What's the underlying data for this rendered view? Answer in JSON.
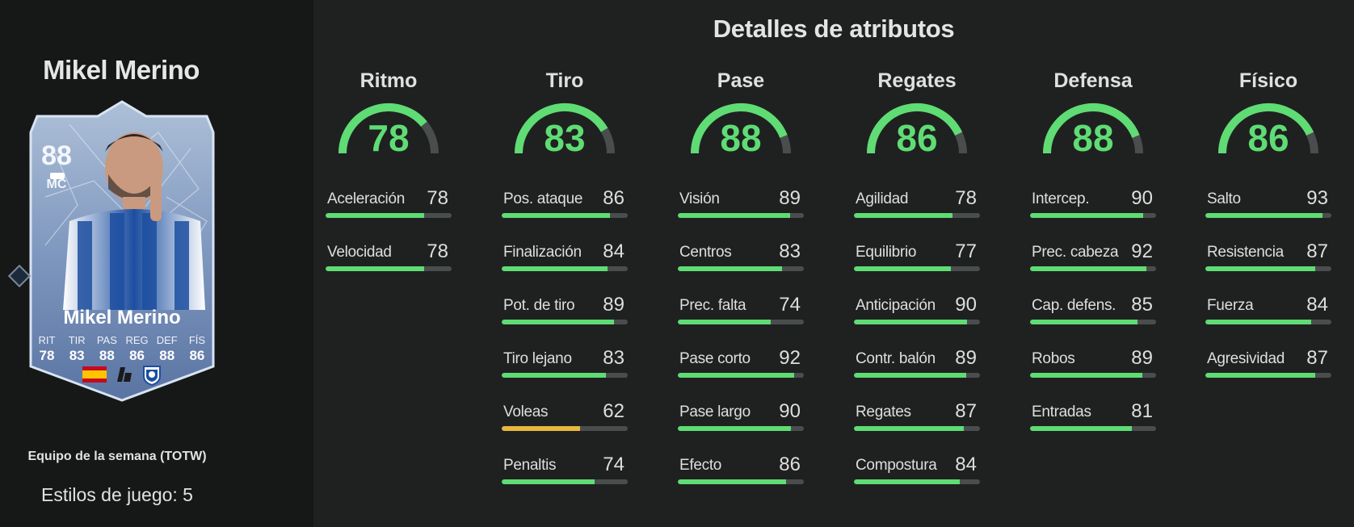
{
  "player": {
    "name": "Mikel Merino",
    "rating": "88",
    "position": "MC",
    "card_name": "Mikel Merino",
    "card_stats": [
      {
        "label": "RIT",
        "value": "78"
      },
      {
        "label": "TIR",
        "value": "83"
      },
      {
        "label": "PAS",
        "value": "88"
      },
      {
        "label": "REG",
        "value": "86"
      },
      {
        "label": "DEF",
        "value": "88"
      },
      {
        "label": "FÍS",
        "value": "86"
      }
    ],
    "card_type": "Equipo de la semana (TOTW)",
    "playstyles": "Estilos de juego: 5"
  },
  "details_title": "Detalles de atributos",
  "colors": {
    "green": "#5fdc74",
    "yellow": "#e8b73e",
    "track": "#4a4d4d"
  },
  "categories": [
    {
      "name": "Ritmo",
      "value": "78",
      "attrs": [
        {
          "name": "Aceleración",
          "value": "78"
        },
        {
          "name": "Velocidad",
          "value": "78"
        }
      ]
    },
    {
      "name": "Tiro",
      "value": "83",
      "attrs": [
        {
          "name": "Pos. ataque",
          "value": "86"
        },
        {
          "name": "Finalización",
          "value": "84"
        },
        {
          "name": "Pot. de tiro",
          "value": "89"
        },
        {
          "name": "Tiro lejano",
          "value": "83"
        },
        {
          "name": "Voleas",
          "value": "62"
        },
        {
          "name": "Penaltis",
          "value": "74"
        }
      ]
    },
    {
      "name": "Pase",
      "value": "88",
      "attrs": [
        {
          "name": "Visión",
          "value": "89"
        },
        {
          "name": "Centros",
          "value": "83"
        },
        {
          "name": "Prec. falta",
          "value": "74"
        },
        {
          "name": "Pase corto",
          "value": "92"
        },
        {
          "name": "Pase largo",
          "value": "90"
        },
        {
          "name": "Efecto",
          "value": "86"
        }
      ]
    },
    {
      "name": "Regates",
      "value": "86",
      "attrs": [
        {
          "name": "Agilidad",
          "value": "78"
        },
        {
          "name": "Equilibrio",
          "value": "77"
        },
        {
          "name": "Anticipación",
          "value": "90"
        },
        {
          "name": "Contr. balón",
          "value": "89"
        },
        {
          "name": "Regates",
          "value": "87"
        },
        {
          "name": "Compostura",
          "value": "84"
        }
      ]
    },
    {
      "name": "Defensa",
      "value": "88",
      "attrs": [
        {
          "name": "Intercep.",
          "value": "90"
        },
        {
          "name": "Prec. cabeza",
          "value": "92"
        },
        {
          "name": "Cap. defens.",
          "value": "85"
        },
        {
          "name": "Robos",
          "value": "89"
        },
        {
          "name": "Entradas",
          "value": "81"
        }
      ]
    },
    {
      "name": "Físico",
      "value": "86",
      "attrs": [
        {
          "name": "Salto",
          "value": "93"
        },
        {
          "name": "Resistencia",
          "value": "87"
        },
        {
          "name": "Fuerza",
          "value": "84"
        },
        {
          "name": "Agresividad",
          "value": "87"
        }
      ]
    }
  ]
}
